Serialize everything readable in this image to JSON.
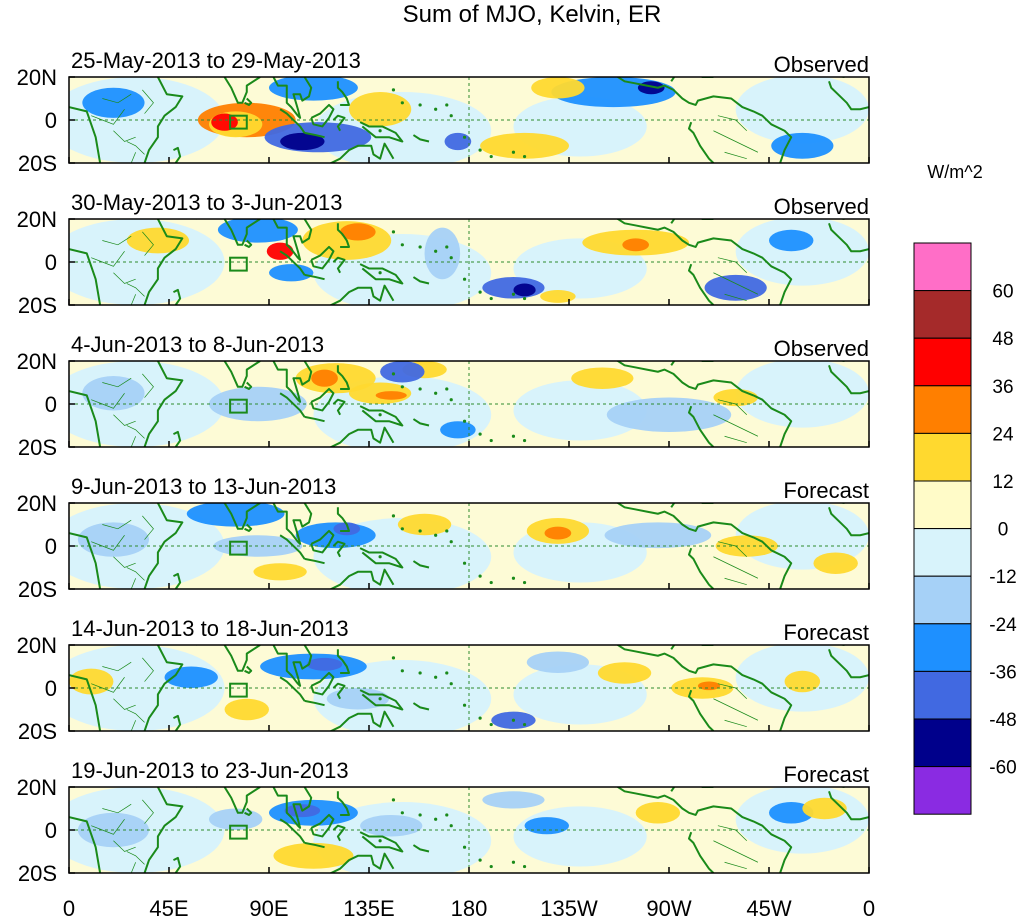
{
  "title": "Sum of MJO, Kelvin, ER",
  "colorbar": {
    "unit": "W/m^2",
    "labels": [
      "60",
      "48",
      "36",
      "24",
      "12",
      "0",
      "-12",
      "-24",
      "-36",
      "-48",
      "-60"
    ],
    "colors": [
      "#ff6ec7",
      "#a52a2a",
      "#ff0000",
      "#ff7f00",
      "#ffd92f",
      "#fffbc8",
      "#d8f3fb",
      "#a6d1f7",
      "#1e90ff",
      "#4169e1",
      "#00008b",
      "#8a2be2"
    ]
  },
  "axes": {
    "x_ticks": [
      "0",
      "45E",
      "90E",
      "135E",
      "180",
      "135W",
      "90W",
      "45W",
      "0"
    ],
    "y_ticks": [
      "20N",
      "0",
      "20S"
    ]
  },
  "panels": [
    {
      "period": "25-May-2013 to 29-May-2013",
      "type": "Observed"
    },
    {
      "period": "30-May-2013 to 3-Jun-2013",
      "type": "Observed"
    },
    {
      "period": "4-Jun-2013 to 8-Jun-2013",
      "type": "Observed"
    },
    {
      "period": "9-Jun-2013 to 13-Jun-2013",
      "type": "Forecast"
    },
    {
      "period": "14-Jun-2013 to 18-Jun-2013",
      "type": "Forecast"
    },
    {
      "period": "19-Jun-2013 to 23-Jun-2013",
      "type": "Forecast"
    }
  ],
  "anomaly_blobs": [
    [
      {
        "lon": 80,
        "lat": 0,
        "rx": 22,
        "ry": 8,
        "level": 3
      },
      {
        "lon": 75,
        "lat": -2,
        "rx": 12,
        "ry": 6,
        "level": 1
      },
      {
        "lon": 70,
        "lat": -1,
        "rx": 6,
        "ry": 4,
        "level": 2
      },
      {
        "lon": 112,
        "lat": -8,
        "rx": 24,
        "ry": 7,
        "level": -3
      },
      {
        "lon": 105,
        "lat": -10,
        "rx": 10,
        "ry": 4,
        "level": -4
      },
      {
        "lon": 140,
        "lat": 5,
        "rx": 14,
        "ry": 8,
        "level": 1
      },
      {
        "lon": 110,
        "lat": 15,
        "rx": 20,
        "ry": 6,
        "level": -2
      },
      {
        "lon": 205,
        "lat": -12,
        "rx": 20,
        "ry": 6,
        "level": 1
      },
      {
        "lon": 245,
        "lat": 13,
        "rx": 28,
        "ry": 7,
        "level": -2
      },
      {
        "lon": 262,
        "lat": 15,
        "rx": 6,
        "ry": 3,
        "level": -4
      },
      {
        "lon": 220,
        "lat": 15,
        "rx": 12,
        "ry": 5,
        "level": 1
      },
      {
        "lon": 330,
        "lat": -12,
        "rx": 14,
        "ry": 6,
        "level": -2
      },
      {
        "lon": 20,
        "lat": 8,
        "rx": 14,
        "ry": 7,
        "level": -2
      },
      {
        "lon": 175,
        "lat": -10,
        "rx": 6,
        "ry": 4,
        "level": -3
      }
    ],
    [
      {
        "lon": 125,
        "lat": 10,
        "rx": 20,
        "ry": 9,
        "level": 1
      },
      {
        "lon": 130,
        "lat": 14,
        "rx": 8,
        "ry": 4,
        "level": 3
      },
      {
        "lon": 95,
        "lat": 5,
        "rx": 6,
        "ry": 4,
        "level": 2
      },
      {
        "lon": 85,
        "lat": 15,
        "rx": 18,
        "ry": 6,
        "level": -2
      },
      {
        "lon": 100,
        "lat": -5,
        "rx": 10,
        "ry": 4,
        "level": -2
      },
      {
        "lon": 255,
        "lat": 9,
        "rx": 24,
        "ry": 6,
        "level": 1
      },
      {
        "lon": 255,
        "lat": 8,
        "rx": 6,
        "ry": 3,
        "level": 3
      },
      {
        "lon": 200,
        "lat": -12,
        "rx": 14,
        "ry": 5,
        "level": -3
      },
      {
        "lon": 205,
        "lat": -13,
        "rx": 5,
        "ry": 3,
        "level": -4
      },
      {
        "lon": 300,
        "lat": -12,
        "rx": 14,
        "ry": 6,
        "level": -3
      },
      {
        "lon": 325,
        "lat": 10,
        "rx": 10,
        "ry": 5,
        "level": -2
      },
      {
        "lon": 40,
        "lat": 10,
        "rx": 14,
        "ry": 6,
        "level": 1
      },
      {
        "lon": 168,
        "lat": 4,
        "rx": 8,
        "ry": 12,
        "level": -1
      },
      {
        "lon": 220,
        "lat": -16,
        "rx": 8,
        "ry": 3,
        "level": 1
      }
    ],
    [
      {
        "lon": 120,
        "lat": 12,
        "rx": 18,
        "ry": 7,
        "level": 1
      },
      {
        "lon": 115,
        "lat": 12,
        "rx": 6,
        "ry": 4,
        "level": 3
      },
      {
        "lon": 140,
        "lat": 5,
        "rx": 14,
        "ry": 5,
        "level": 1
      },
      {
        "lon": 145,
        "lat": 4,
        "rx": 7,
        "ry": 2,
        "level": 3
      },
      {
        "lon": 160,
        "lat": 16,
        "rx": 10,
        "ry": 4,
        "level": 1
      },
      {
        "lon": 150,
        "lat": 15,
        "rx": 10,
        "ry": 5,
        "level": -3
      },
      {
        "lon": 85,
        "lat": 0,
        "rx": 22,
        "ry": 8,
        "level": -1
      },
      {
        "lon": 175,
        "lat": -12,
        "rx": 8,
        "ry": 4,
        "level": -2
      },
      {
        "lon": 240,
        "lat": 12,
        "rx": 14,
        "ry": 5,
        "level": 1
      },
      {
        "lon": 270,
        "lat": -5,
        "rx": 28,
        "ry": 8,
        "level": -1
      },
      {
        "lon": 300,
        "lat": 3,
        "rx": 10,
        "ry": 4,
        "level": 1
      },
      {
        "lon": 20,
        "lat": 5,
        "rx": 14,
        "ry": 8,
        "level": -1
      }
    ],
    [
      {
        "lon": 75,
        "lat": 15,
        "rx": 22,
        "ry": 6,
        "level": -2
      },
      {
        "lon": 120,
        "lat": 5,
        "rx": 18,
        "ry": 6,
        "level": -2
      },
      {
        "lon": 125,
        "lat": 8,
        "rx": 6,
        "ry": 3,
        "level": -3
      },
      {
        "lon": 95,
        "lat": -12,
        "rx": 12,
        "ry": 4,
        "level": 1
      },
      {
        "lon": 85,
        "lat": 0,
        "rx": 20,
        "ry": 5,
        "level": -1
      },
      {
        "lon": 220,
        "lat": 7,
        "rx": 14,
        "ry": 6,
        "level": 1
      },
      {
        "lon": 220,
        "lat": 6,
        "rx": 6,
        "ry": 3,
        "level": 3
      },
      {
        "lon": 160,
        "lat": 10,
        "rx": 12,
        "ry": 5,
        "level": 1
      },
      {
        "lon": 265,
        "lat": 5,
        "rx": 24,
        "ry": 6,
        "level": -1
      },
      {
        "lon": 305,
        "lat": 0,
        "rx": 14,
        "ry": 5,
        "level": 1
      },
      {
        "lon": 345,
        "lat": -8,
        "rx": 10,
        "ry": 5,
        "level": 1
      },
      {
        "lon": 20,
        "lat": 3,
        "rx": 16,
        "ry": 8,
        "level": -1
      }
    ],
    [
      {
        "lon": 110,
        "lat": 10,
        "rx": 24,
        "ry": 6,
        "level": -2
      },
      {
        "lon": 115,
        "lat": 11,
        "rx": 8,
        "ry": 3,
        "level": -3
      },
      {
        "lon": 80,
        "lat": -10,
        "rx": 10,
        "ry": 5,
        "level": 1
      },
      {
        "lon": 55,
        "lat": 5,
        "rx": 12,
        "ry": 5,
        "level": -2
      },
      {
        "lon": 130,
        "lat": -5,
        "rx": 14,
        "ry": 5,
        "level": -1
      },
      {
        "lon": 250,
        "lat": 7,
        "rx": 12,
        "ry": 5,
        "level": 1
      },
      {
        "lon": 285,
        "lat": 0,
        "rx": 14,
        "ry": 5,
        "level": 1
      },
      {
        "lon": 288,
        "lat": 1,
        "rx": 5,
        "ry": 2,
        "level": 3
      },
      {
        "lon": 200,
        "lat": -15,
        "rx": 10,
        "ry": 4,
        "level": -3
      },
      {
        "lon": 220,
        "lat": 12,
        "rx": 14,
        "ry": 5,
        "level": -1
      },
      {
        "lon": 330,
        "lat": 3,
        "rx": 8,
        "ry": 5,
        "level": 1
      },
      {
        "lon": 10,
        "lat": 3,
        "rx": 10,
        "ry": 6,
        "level": 1
      }
    ],
    [
      {
        "lon": 110,
        "lat": 8,
        "rx": 20,
        "ry": 6,
        "level": -2
      },
      {
        "lon": 105,
        "lat": 9,
        "rx": 8,
        "ry": 3,
        "level": -3
      },
      {
        "lon": 110,
        "lat": -12,
        "rx": 18,
        "ry": 6,
        "level": 1
      },
      {
        "lon": 145,
        "lat": 2,
        "rx": 14,
        "ry": 5,
        "level": -1
      },
      {
        "lon": 75,
        "lat": 5,
        "rx": 12,
        "ry": 5,
        "level": -1
      },
      {
        "lon": 215,
        "lat": 2,
        "rx": 10,
        "ry": 4,
        "level": -2
      },
      {
        "lon": 265,
        "lat": 8,
        "rx": 10,
        "ry": 5,
        "level": 1
      },
      {
        "lon": 325,
        "lat": 8,
        "rx": 10,
        "ry": 5,
        "level": -2
      },
      {
        "lon": 340,
        "lat": 10,
        "rx": 10,
        "ry": 5,
        "level": 1
      },
      {
        "lon": 20,
        "lat": 0,
        "rx": 16,
        "ry": 8,
        "level": -1
      },
      {
        "lon": 200,
        "lat": 14,
        "rx": 14,
        "ry": 4,
        "level": -1
      }
    ]
  ]
}
